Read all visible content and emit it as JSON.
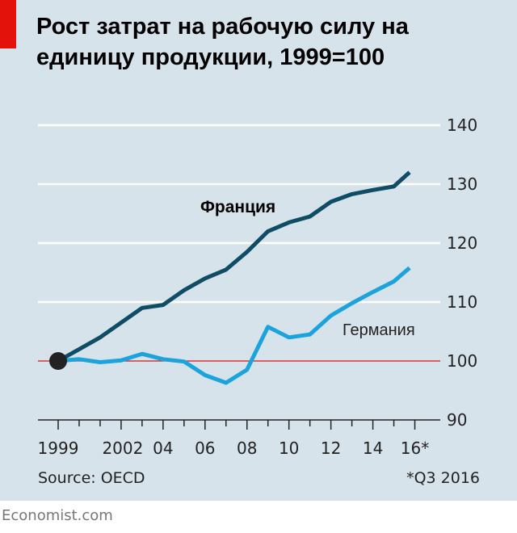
{
  "title": "Рост затрат на рабочую силу на единицу продукции, 1999=100",
  "footer": "Economist.com",
  "source": "Source: OECD",
  "footnote": "*Q3 2016",
  "colors": {
    "background": "#d7e3ea",
    "france": "#0f4c66",
    "germany": "#1aa3dc",
    "baseline": "#e3120b",
    "accent": "#e3120b"
  },
  "chart_data": {
    "type": "line",
    "x_ticks": [
      1999,
      2002,
      2004,
      2006,
      2008,
      2010,
      2012,
      2014,
      2016
    ],
    "x_tick_labels": [
      "1999",
      "2002",
      "04",
      "06",
      "08",
      "10",
      "12",
      "14",
      "16*"
    ],
    "xlim": [
      1999,
      2016.75
    ],
    "ylim": [
      90,
      140
    ],
    "y_ticks": [
      90,
      100,
      110,
      120,
      130,
      140
    ],
    "y_tick_labels": [
      "90",
      "100",
      "110",
      "120",
      "130",
      "140"
    ],
    "base_marker": {
      "x": 1999,
      "y": 100
    },
    "series": [
      {
        "name": "Франция",
        "color": "#0f4c66",
        "x": [
          1999,
          2000,
          2001,
          2002,
          2003,
          2004,
          2005,
          2006,
          2007,
          2008,
          2009,
          2010,
          2011,
          2012,
          2013,
          2014,
          2015,
          2015.75
        ],
        "y": [
          100,
          102,
          104,
          106.5,
          109,
          109.5,
          112,
          114,
          115.5,
          118.5,
          122,
          123.5,
          124.5,
          127,
          128.3,
          129,
          129.6,
          132
        ]
      },
      {
        "name": "Германия",
        "color": "#1aa3dc",
        "x": [
          1999,
          2000,
          2001,
          2002,
          2003,
          2004,
          2005,
          2006,
          2007,
          2008,
          2009,
          2010,
          2011,
          2012,
          2013,
          2014,
          2015,
          2015.75
        ],
        "y": [
          100,
          100.3,
          99.8,
          100.1,
          101.2,
          100.3,
          99.9,
          97.6,
          96.3,
          98.5,
          105.8,
          104,
          104.5,
          107.7,
          109.8,
          111.7,
          113.5,
          115.8
        ]
      }
    ]
  }
}
